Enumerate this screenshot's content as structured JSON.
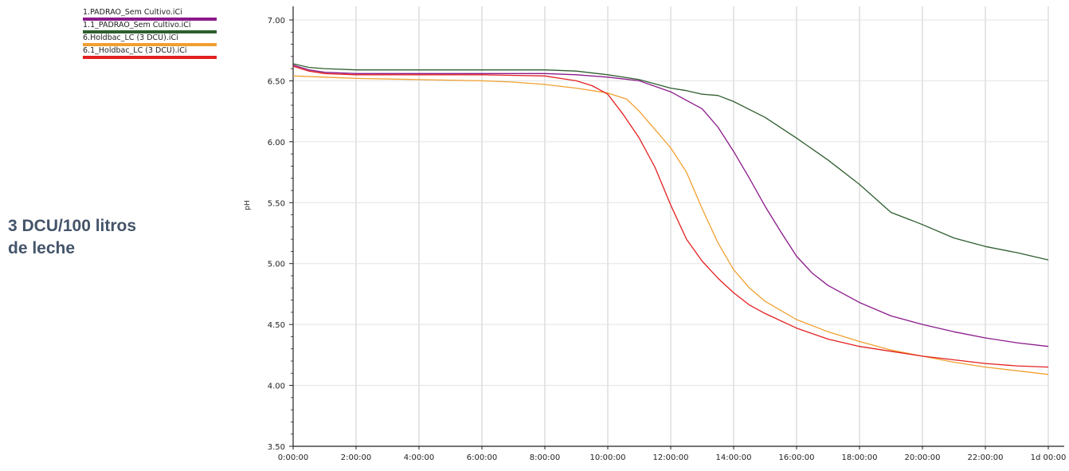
{
  "side_note": {
    "line1": "3 DCU/100 litros",
    "line2": "de leche"
  },
  "chart_data": {
    "type": "line",
    "title": "",
    "xlabel": "",
    "ylabel": "pH",
    "xlim_hours": [
      0,
      24
    ],
    "ylim": [
      3.5,
      7.0
    ],
    "grid": true,
    "legend_placement": "top-left",
    "x_tick_labels": [
      "0:00:00",
      "2:00:00",
      "4:00:00",
      "6:00:00",
      "8:00:00",
      "10:00:00",
      "12:00:00",
      "14:00:00",
      "16:00:00",
      "18:00:00",
      "20:00:00",
      "22:00:00",
      "1d 00:00"
    ],
    "y_ticks": [
      3.5,
      4.0,
      4.5,
      5.0,
      5.5,
      6.0,
      6.5,
      7.0
    ],
    "y_tick_labels": [
      "3.50",
      "4.00",
      "4.50",
      "5.00",
      "5.50",
      "6.00",
      "6.50",
      "7.00"
    ],
    "series": [
      {
        "name": "1.PADRAO_Sem Cultivo.iCi",
        "color": "#8b1a8b",
        "x": [
          0,
          0.5,
          1,
          2,
          4,
          6,
          8,
          9,
          10,
          11,
          12,
          13,
          13.5,
          14,
          14.5,
          15,
          15.5,
          16,
          16.5,
          17,
          18,
          19,
          20,
          21,
          22,
          23,
          24
        ],
        "y": [
          6.63,
          6.59,
          6.57,
          6.56,
          6.56,
          6.56,
          6.56,
          6.55,
          6.53,
          6.5,
          6.41,
          6.27,
          6.12,
          5.92,
          5.7,
          5.47,
          5.26,
          5.06,
          4.92,
          4.82,
          4.68,
          4.57,
          4.5,
          4.44,
          4.39,
          4.35,
          4.32
        ]
      },
      {
        "name": "1.1_PADRAO_Sem Cultivo.iCi",
        "color": "#2f5e2f",
        "x": [
          0,
          0.5,
          1,
          2,
          4,
          6,
          8,
          9,
          10,
          11,
          12,
          12.5,
          13,
          13.5,
          14,
          15,
          16,
          17,
          18,
          19,
          20,
          21,
          22,
          23,
          24
        ],
        "y": [
          6.64,
          6.61,
          6.6,
          6.59,
          6.59,
          6.59,
          6.59,
          6.58,
          6.55,
          6.51,
          6.44,
          6.42,
          6.39,
          6.38,
          6.33,
          6.2,
          6.03,
          5.85,
          5.65,
          5.42,
          5.32,
          5.21,
          5.14,
          5.09,
          5.03
        ]
      },
      {
        "name": "6.Holdbac_LC (3 DCU).iCi",
        "color": "#f0a030",
        "x": [
          0,
          1,
          2,
          4,
          6,
          7,
          8,
          9,
          10,
          10.6,
          11,
          11.5,
          12,
          12.5,
          13,
          13.5,
          14,
          14.5,
          15,
          16,
          17,
          18,
          19,
          20,
          21,
          22,
          23,
          24
        ],
        "y": [
          6.54,
          6.53,
          6.52,
          6.51,
          6.5,
          6.49,
          6.47,
          6.44,
          6.4,
          6.35,
          6.25,
          6.1,
          5.95,
          5.75,
          5.45,
          5.17,
          4.95,
          4.8,
          4.69,
          4.54,
          4.44,
          4.36,
          4.29,
          4.24,
          4.19,
          4.15,
          4.12,
          4.09
        ]
      },
      {
        "name": "6.1_Holdbac_LC (3 DCU).iCi",
        "color": "#e32020",
        "x": [
          0,
          0.5,
          1,
          2,
          4,
          6,
          8,
          8.5,
          9,
          9.5,
          10,
          10.5,
          11,
          11.5,
          12,
          12.5,
          13,
          13.5,
          14,
          14.5,
          15,
          16,
          17,
          18,
          19,
          20,
          21,
          22,
          23,
          24
        ],
        "y": [
          6.62,
          6.58,
          6.56,
          6.55,
          6.55,
          6.55,
          6.54,
          6.52,
          6.5,
          6.46,
          6.39,
          6.22,
          6.03,
          5.79,
          5.48,
          5.2,
          5.02,
          4.88,
          4.76,
          4.66,
          4.59,
          4.47,
          4.38,
          4.32,
          4.28,
          4.24,
          4.21,
          4.18,
          4.16,
          4.15
        ]
      }
    ]
  }
}
